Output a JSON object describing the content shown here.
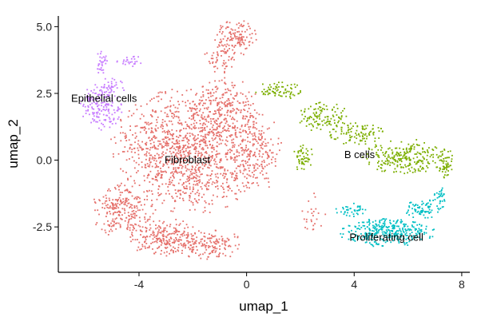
{
  "chart_data": {
    "type": "scatter",
    "title": "",
    "xlabel": "umap_1",
    "ylabel": "umap_2",
    "xlim": [
      -7.0,
      8.3
    ],
    "ylim": [
      -4.2,
      5.4
    ],
    "xticks": [
      -4,
      0,
      4,
      8
    ],
    "yticks": [
      -2.5,
      0.0,
      2.5,
      5.0
    ],
    "xtick_labels": [
      "-4",
      "0",
      "4",
      "8"
    ],
    "ytick_labels": [
      "-2.5",
      "0.0",
      "2.5",
      "5.0"
    ],
    "grid": false,
    "legend": "none",
    "point_size": "small",
    "series": [
      {
        "name": "Fibroblast",
        "color": "#E5706B",
        "label": {
          "text": "Fibroblast",
          "x": -2.2,
          "y": 0.0
        },
        "regions": [
          {
            "cx": -2.2,
            "cy": 0.3,
            "rx": 2.9,
            "ry": 2.4,
            "n": 1200
          },
          {
            "cx": -4.6,
            "cy": -1.9,
            "rx": 1.2,
            "ry": 1.0,
            "n": 230
          },
          {
            "cx": -3.0,
            "cy": -2.9,
            "rx": 1.5,
            "ry": 0.7,
            "n": 240
          },
          {
            "cx": -1.3,
            "cy": -3.2,
            "rx": 1.2,
            "ry": 0.6,
            "n": 140
          },
          {
            "cx": -0.8,
            "cy": 1.9,
            "rx": 1.4,
            "ry": 1.2,
            "n": 220
          },
          {
            "cx": 0.4,
            "cy": 0.3,
            "rx": 1.0,
            "ry": 1.5,
            "n": 180
          },
          {
            "cx": -0.4,
            "cy": 4.6,
            "rx": 0.8,
            "ry": 0.7,
            "n": 130
          },
          {
            "cx": -1.0,
            "cy": 3.8,
            "rx": 0.6,
            "ry": 0.6,
            "n": 50
          },
          {
            "cx": 2.5,
            "cy": -2.0,
            "rx": 0.5,
            "ry": 0.8,
            "n": 25
          }
        ]
      },
      {
        "name": "Epithelial cells",
        "color": "#C77CFF",
        "label": {
          "text": "Epithelial cells",
          "x": -5.3,
          "y": 2.3
        },
        "regions": [
          {
            "cx": -5.4,
            "cy": 2.0,
            "rx": 0.8,
            "ry": 0.9,
            "n": 170
          },
          {
            "cx": -5.4,
            "cy": 3.6,
            "rx": 0.25,
            "ry": 0.5,
            "n": 30
          },
          {
            "cx": -4.3,
            "cy": 3.7,
            "rx": 0.6,
            "ry": 0.2,
            "n": 25
          },
          {
            "cx": -5.0,
            "cy": 2.8,
            "rx": 0.6,
            "ry": 0.3,
            "n": 30
          }
        ]
      },
      {
        "name": "B cells",
        "color": "#7CAE00",
        "label": {
          "text": "B cells",
          "x": 4.2,
          "y": 0.2
        },
        "regions": [
          {
            "cx": 1.2,
            "cy": 2.6,
            "rx": 0.9,
            "ry": 0.35,
            "n": 70
          },
          {
            "cx": 2.9,
            "cy": 1.6,
            "rx": 1.0,
            "ry": 0.6,
            "n": 110
          },
          {
            "cx": 4.0,
            "cy": 1.0,
            "rx": 1.1,
            "ry": 0.45,
            "n": 100
          },
          {
            "cx": 5.9,
            "cy": 0.1,
            "rx": 1.6,
            "ry": 0.7,
            "n": 240
          },
          {
            "cx": 2.1,
            "cy": 0.1,
            "rx": 0.4,
            "ry": 0.6,
            "n": 50
          },
          {
            "cx": 7.4,
            "cy": -0.1,
            "rx": 0.3,
            "ry": 0.6,
            "n": 60
          }
        ]
      },
      {
        "name": "Proliferating cell",
        "color": "#00BFC4",
        "label": {
          "text": "Proliferating cell",
          "x": 5.2,
          "y": -2.9
        },
        "regions": [
          {
            "cx": 5.2,
            "cy": -2.7,
            "rx": 1.8,
            "ry": 0.55,
            "n": 330
          },
          {
            "cx": 6.6,
            "cy": -1.8,
            "rx": 0.8,
            "ry": 0.4,
            "n": 80
          },
          {
            "cx": 3.9,
            "cy": -1.9,
            "rx": 0.6,
            "ry": 0.3,
            "n": 40
          },
          {
            "cx": 7.2,
            "cy": -1.3,
            "rx": 0.3,
            "ry": 0.3,
            "n": 25
          }
        ]
      }
    ]
  }
}
